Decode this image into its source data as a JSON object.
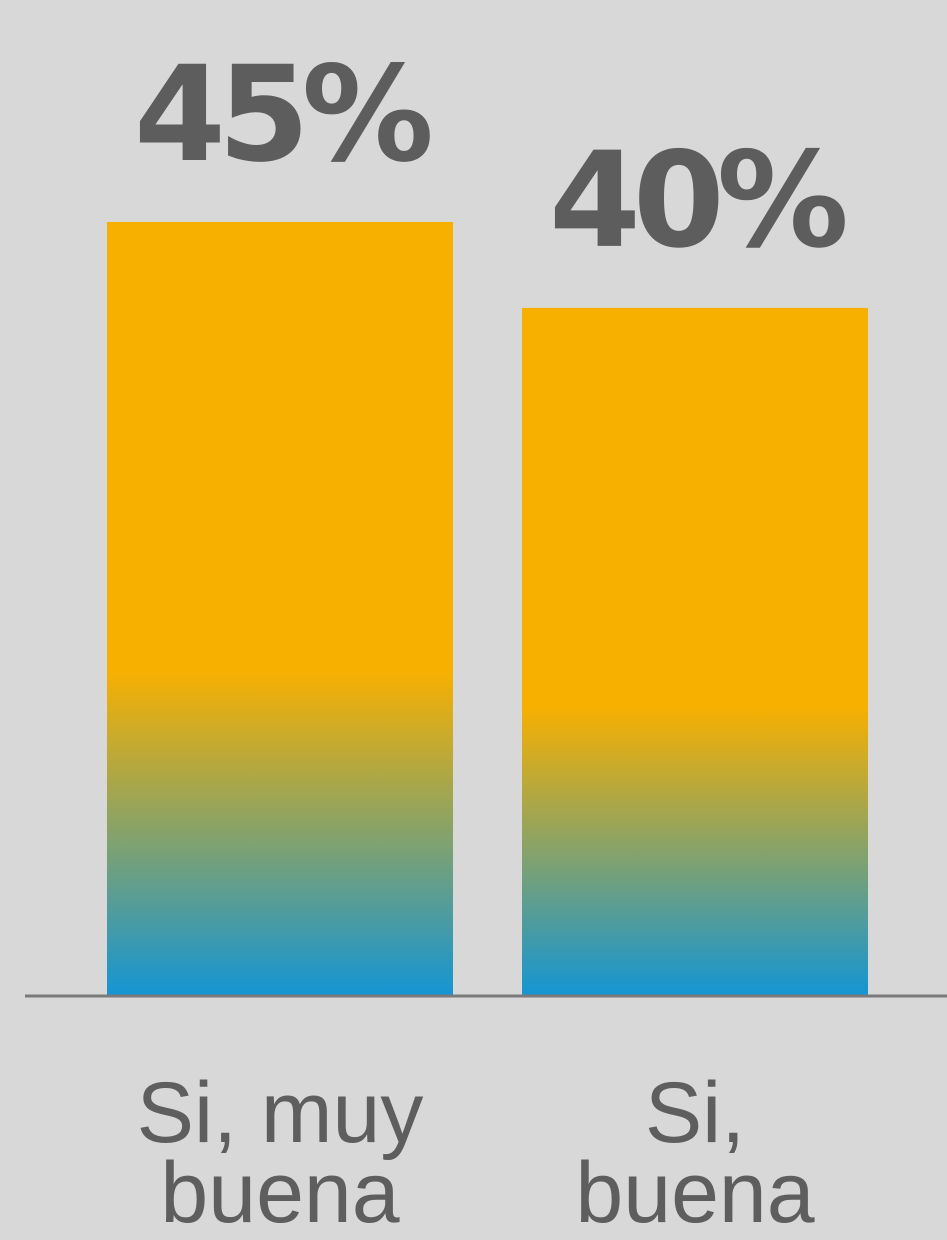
{
  "chart_data": {
    "type": "bar",
    "categories": [
      [
        "Si, muy",
        "buena"
      ],
      [
        "Si,",
        "buena"
      ]
    ],
    "values": [
      45,
      40
    ],
    "value_labels": [
      "45%",
      "40%"
    ],
    "ylim": [
      0,
      45
    ],
    "grid": false,
    "colors": {
      "bar_top": "#f8b000",
      "bar_mid": "#f8b000",
      "bar_bottom": "#1595d3",
      "text": "#5d5d5d",
      "axis": "#7a7a7a",
      "background": "#d9d8d8"
    }
  }
}
